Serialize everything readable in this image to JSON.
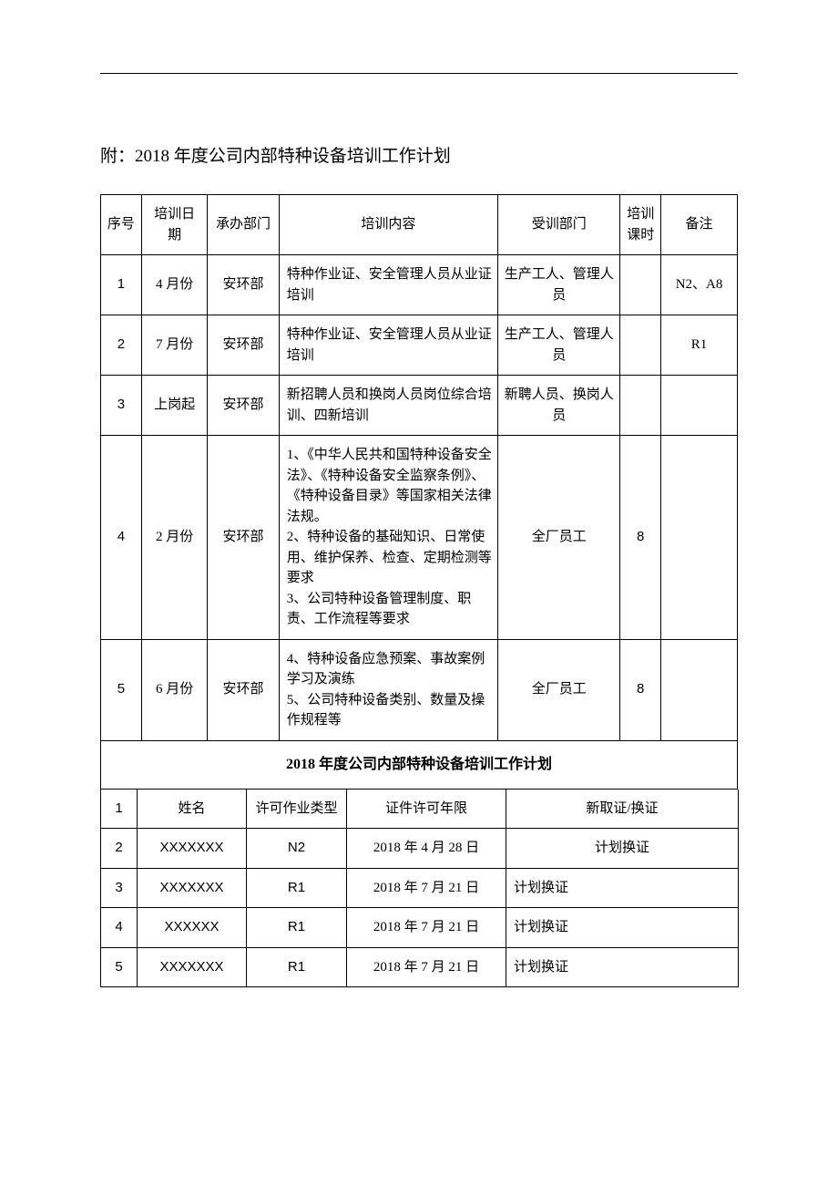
{
  "title": "附：2018 年度公司内部特种设备培训工作计划",
  "table1": {
    "headers": {
      "seq": "序号",
      "date": "培训日期",
      "dept": "承办部门",
      "content": "培训内容",
      "trainee": "受训部门",
      "hours": "培训课时",
      "remark": "备注"
    },
    "rows": [
      {
        "seq": "1",
        "date": "4 月份",
        "dept": "安环部",
        "content": "特种作业证、安全管理人员从业证培训",
        "trainee": "生产工人、管理人员",
        "hours": "",
        "remark": "N2、A8"
      },
      {
        "seq": "2",
        "date": "7 月份",
        "dept": "安环部",
        "content": "特种作业证、安全管理人员从业证培训",
        "trainee": "生产工人、管理人员",
        "hours": "",
        "remark": "R1"
      },
      {
        "seq": "3",
        "date": "上岗起",
        "dept": "安环部",
        "content": "新招聘人员和换岗人员岗位综合培训、四新培训",
        "trainee": "新聘人员、换岗人员",
        "hours": "",
        "remark": ""
      },
      {
        "seq": "4",
        "date": "2 月份",
        "dept": "安环部",
        "content": "1、《中华人民共和国特种设备安全法》、《特种设备安全监察条例》、《特种设备目录》等国家相关法律法规。\n2、特种设备的基础知识、日常使用、维护保养、检查、定期检测等要求\n3、公司特种设备管理制度、职责、工作流程等要求",
        "trainee": "全厂员工",
        "hours": "8",
        "remark": ""
      },
      {
        "seq": "5",
        "date": "6 月份",
        "dept": "安环部",
        "content": "4、特种设备应急预案、事故案例学习及演练\n5、公司特种设备类别、数量及操作规程等",
        "trainee": "全厂员工",
        "hours": "8",
        "remark": ""
      }
    ]
  },
  "subtitle": "2018 年度公司内部特种设备培训工作计划",
  "table2": {
    "headers": {
      "seq": "1",
      "name": "姓名",
      "type": "许可作业类型",
      "valid": "证件许可年限",
      "action": "新取证/换证"
    },
    "rows": [
      {
        "seq": "2",
        "name": "XXXXXXX",
        "type": "N2",
        "valid": "2018 年 4 月 28 日",
        "action": "计划换证",
        "actionAlign": "center"
      },
      {
        "seq": "3",
        "name": "XXXXXXX",
        "type": "R1",
        "valid": "2018 年 7 月 21 日",
        "action": "计划换证",
        "actionAlign": "left"
      },
      {
        "seq": "4",
        "name": "XXXXXX",
        "type": "R1",
        "valid": "2018 年 7 月 21 日",
        "action": "计划换证",
        "actionAlign": "left"
      },
      {
        "seq": "5",
        "name": "XXXXXXX",
        "type": "R1",
        "valid": "2018 年 7 月 21 日",
        "action": "计划换证",
        "actionAlign": "left"
      }
    ]
  }
}
